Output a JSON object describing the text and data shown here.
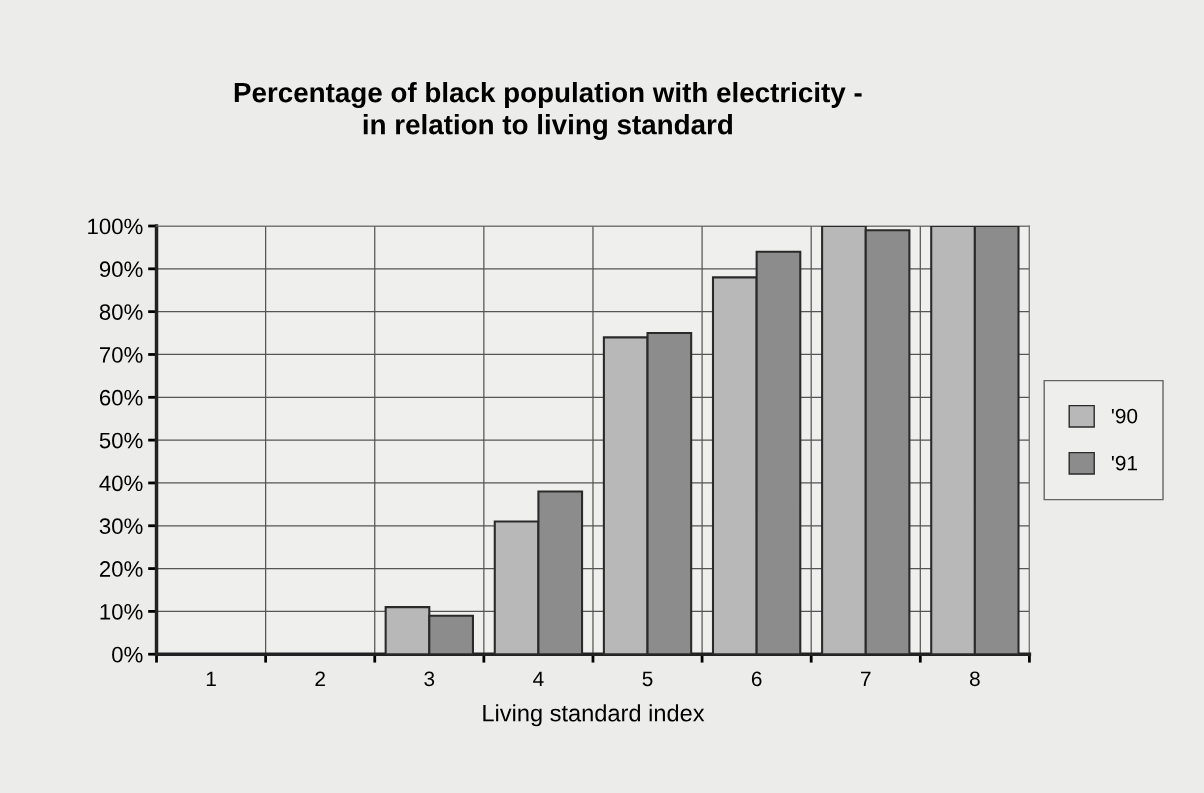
{
  "chart_data": {
    "type": "bar",
    "title": "Percentage of black population with electricity -\nin relation to living standard",
    "xlabel": "Living standard index",
    "categories": [
      "1",
      "2",
      "3",
      "4",
      "5",
      "6",
      "7",
      "8"
    ],
    "series": [
      {
        "name": "'90",
        "color": "#b8b8b8",
        "values": [
          0,
          0,
          11,
          31,
          74,
          88,
          100,
          100
        ]
      },
      {
        "name": "'91",
        "color": "#8c8c8c",
        "values": [
          0,
          0,
          9,
          38,
          75,
          94,
          99,
          100
        ]
      }
    ],
    "ylim": [
      0,
      100
    ],
    "yticks": [
      {
        "value": 0,
        "label": "0%"
      },
      {
        "value": 10,
        "label": "10%"
      },
      {
        "value": 20,
        "label": "20%"
      },
      {
        "value": 30,
        "label": "30%"
      },
      {
        "value": 40,
        "label": "40%"
      },
      {
        "value": 50,
        "label": "50%"
      },
      {
        "value": 60,
        "label": "60%"
      },
      {
        "value": 70,
        "label": "70%"
      },
      {
        "value": 80,
        "label": "80%"
      },
      {
        "value": 90,
        "label": "90%"
      },
      {
        "value": 100,
        "label": "100%"
      }
    ],
    "grid": true,
    "legend": "right"
  }
}
